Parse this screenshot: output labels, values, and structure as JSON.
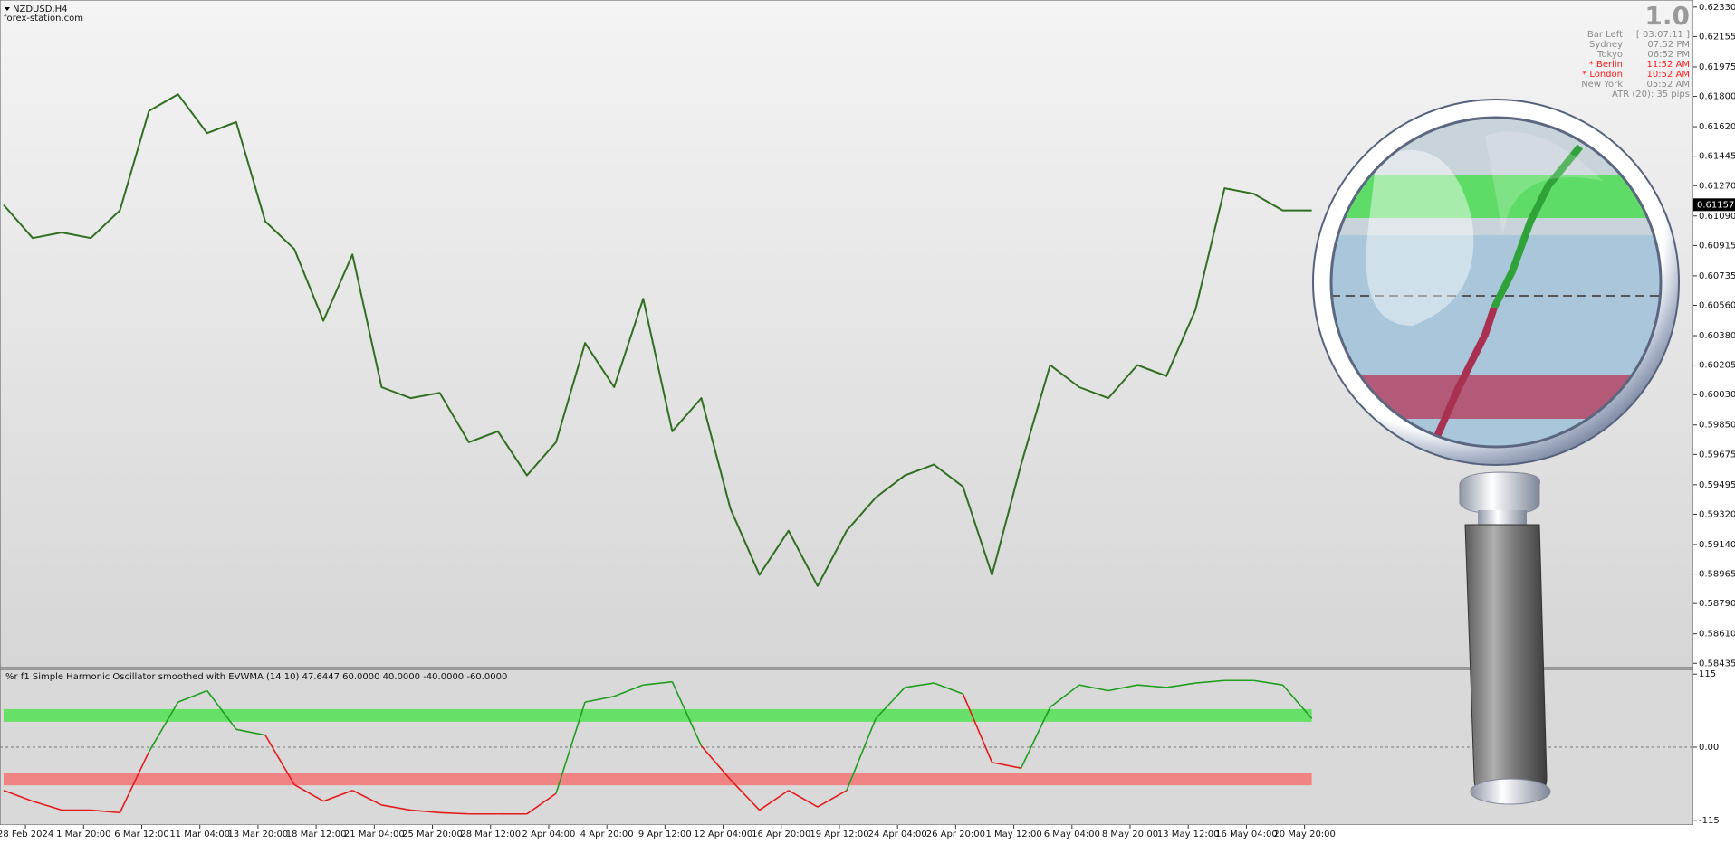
{
  "header": {
    "symbol": "NZDUSD,H4",
    "source": "forex-station.com"
  },
  "info_panel": {
    "version": "1.0",
    "rows": [
      {
        "label": "Bar Left",
        "value": "[ 03:07:11 ]",
        "color": "#8a8a8a"
      },
      {
        "label": "Sydney",
        "value": "07:52 PM",
        "color": "#8a8a8a"
      },
      {
        "label": "Tokyo",
        "value": "06:52 PM",
        "color": "#8a8a8a"
      },
      {
        "label": "* Berlin",
        "value": "11:52 AM",
        "color": "#ff1a1a"
      },
      {
        "label": "* London",
        "value": "10:52 AM",
        "color": "#ff1a1a"
      },
      {
        "label": "New York",
        "value": "05:52 AM",
        "color": "#8a8a8a"
      }
    ],
    "atr": "ATR (20): 35 pips"
  },
  "chart_data": [
    {
      "type": "line",
      "x": [
        -6,
        2,
        10,
        18,
        26,
        34,
        42,
        50,
        58,
        66,
        74,
        82,
        90,
        98,
        106,
        114,
        122,
        130,
        138,
        146,
        154,
        162,
        170,
        178,
        186,
        194,
        202,
        210,
        218,
        226,
        234,
        242,
        250,
        258,
        266,
        274,
        282,
        290,
        298,
        306,
        314,
        322,
        330,
        338,
        346,
        354
      ],
      "values": [
        0.61156,
        0.60959,
        0.60992,
        0.60959,
        0.61123,
        0.61714,
        0.61812,
        0.61582,
        0.61648,
        0.61058,
        0.60894,
        0.60468,
        0.60862,
        0.60074,
        0.60009,
        0.60041,
        0.59747,
        0.59812,
        0.5955,
        0.59747,
        0.60336,
        0.60074,
        0.60599,
        0.59812,
        0.60009,
        0.59353,
        0.5896,
        0.59222,
        0.58894,
        0.59222,
        0.59419,
        0.5955,
        0.59615,
        0.59484,
        0.5896,
        0.59615,
        0.60205,
        0.60074,
        0.60009,
        0.60205,
        0.6014,
        0.60533,
        0.61255,
        0.61222,
        0.61123,
        0.61123
      ],
      "color": "#2f6f1f",
      "last_price": 0.61157,
      "xlim": [
        -7,
        459
      ],
      "ylim": [
        0.58415,
        0.62356
      ],
      "yticks": [
        {
          "value": 0.6233,
          "label": "0.62330"
        },
        {
          "value": 0.62155,
          "label": "0.62155"
        },
        {
          "value": 0.61975,
          "label": "0.61975"
        },
        {
          "value": 0.618,
          "label": "0.61800"
        },
        {
          "value": 0.6162,
          "label": "0.61620"
        },
        {
          "value": 0.61445,
          "label": "0.61445"
        },
        {
          "value": 0.6127,
          "label": "0.61270"
        },
        {
          "value": 0.6109,
          "label": "0.61090"
        },
        {
          "value": 0.60915,
          "label": "0.60915"
        },
        {
          "value": 0.60735,
          "label": "0.60735"
        },
        {
          "value": 0.6056,
          "label": "0.60560"
        },
        {
          "value": 0.6038,
          "label": "0.60380"
        },
        {
          "value": 0.60205,
          "label": "0.60205"
        },
        {
          "value": 0.6003,
          "label": "0.60030"
        },
        {
          "value": 0.5985,
          "label": "0.59850"
        },
        {
          "value": 0.59675,
          "label": "0.59675"
        },
        {
          "value": 0.59495,
          "label": "0.59495"
        },
        {
          "value": 0.5932,
          "label": "0.59320"
        },
        {
          "value": 0.5914,
          "label": "0.59140"
        },
        {
          "value": 0.58965,
          "label": "0.58965"
        },
        {
          "value": 0.5879,
          "label": "0.58790"
        },
        {
          "value": 0.5861,
          "label": "0.58610"
        },
        {
          "value": 0.58435,
          "label": "0.58435"
        }
      ]
    },
    {
      "type": "oscillator",
      "title": "%r f1  Simple Harmonic Oscillator smoothed with EVWMA (14 10) 47.6447 60.0000 40.0000 -40.0000 -60.0000",
      "x": [
        -6,
        2,
        10,
        18,
        26,
        34,
        42,
        50,
        58,
        66,
        74,
        82,
        90,
        98,
        106,
        114,
        122,
        130,
        138,
        146,
        154,
        162,
        170,
        178,
        186,
        194,
        202,
        210,
        218,
        226,
        234,
        242,
        250,
        258,
        266,
        274,
        282,
        290,
        298,
        306,
        314,
        322,
        330,
        338,
        346,
        354
      ],
      "values": [
        -68,
        -85,
        -99,
        -99,
        -103,
        -7,
        71,
        89,
        28,
        19,
        -59,
        -85,
        -68,
        -91,
        -99,
        -103,
        -105,
        -105,
        -105,
        -73,
        71,
        80,
        98,
        103,
        2,
        -51,
        -99,
        -68,
        -94,
        -68,
        45,
        94,
        101,
        84,
        -24,
        -33,
        63,
        98,
        89,
        98,
        94,
        101,
        105,
        105,
        98,
        45
      ],
      "color_up": "#1e9e1e",
      "color_down": "#e31b1b",
      "bands": [
        {
          "from": 40,
          "to": 60,
          "color": "#66e066"
        },
        {
          "from": -60,
          "to": -40,
          "color": "#f08484"
        }
      ],
      "xlim": [
        -7,
        459
      ],
      "ylim": [
        -121,
        121
      ],
      "yticks": [
        115,
        {
          "value": 0,
          "label": "0.00"
        },
        -115
      ],
      "xticks": [
        {
          "value": 0,
          "label": "28 Feb 2024"
        },
        {
          "value": 16,
          "label": "1 Mar 20:00"
        },
        {
          "value": 32,
          "label": "6 Mar 12:00"
        },
        {
          "value": 48,
          "label": "11 Mar 04:00"
        },
        {
          "value": 64,
          "label": "13 Mar 20:00"
        },
        {
          "value": 80,
          "label": "18 Mar 12:00"
        },
        {
          "value": 96,
          "label": "21 Mar 04:00"
        },
        {
          "value": 112,
          "label": "25 Mar 20:00"
        },
        {
          "value": 128,
          "label": "28 Mar 12:00"
        },
        {
          "value": 144,
          "label": "2 Apr 04:00"
        },
        {
          "value": 160,
          "label": "4 Apr 20:00"
        },
        {
          "value": 176,
          "label": "9 Apr 12:00"
        },
        {
          "value": 192,
          "label": "12 Apr 04:00"
        },
        {
          "value": 208,
          "label": "16 Apr 20:00"
        },
        {
          "value": 224,
          "label": "19 Apr 12:00"
        },
        {
          "value": 240,
          "label": "24 Apr 04:00"
        },
        {
          "value": 256,
          "label": "26 Apr 20:00"
        },
        {
          "value": 272,
          "label": "1 May 12:00"
        },
        {
          "value": 288,
          "label": "6 May 04:00"
        },
        {
          "value": 304,
          "label": "8 May 20:00"
        },
        {
          "value": 320,
          "label": "13 May 12:00"
        },
        {
          "value": 336,
          "label": "16 May 04:00"
        },
        {
          "value": 352,
          "label": "20 May 20:00"
        }
      ]
    }
  ]
}
